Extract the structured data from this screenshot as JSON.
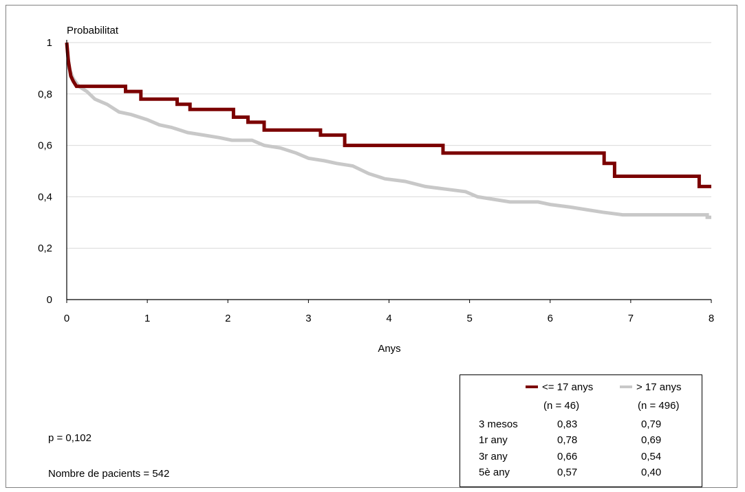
{
  "chart_data": {
    "type": "line",
    "subtype": "kaplan-meier step",
    "ylabel": "Probabilitat",
    "xlabel": "Anys",
    "xlim": [
      0,
      8
    ],
    "ylim": [
      0,
      1
    ],
    "x_ticks": [
      "0",
      "1",
      "2",
      "3",
      "4",
      "5",
      "6",
      "7",
      "8"
    ],
    "y_ticks": [
      "0",
      "0,2",
      "0,4",
      "0,6",
      "0,8",
      "1"
    ],
    "grid": "horizontal",
    "series": [
      {
        "name": "<= 17 anys",
        "n_label": "(n = 46)",
        "color": "#7b0000",
        "points": [
          [
            0,
            1
          ],
          [
            0.02,
            0.93
          ],
          [
            0.05,
            0.87
          ],
          [
            0.08,
            0.85
          ],
          [
            0.12,
            0.83
          ],
          [
            0.73,
            0.83
          ],
          [
            0.73,
            0.81
          ],
          [
            0.92,
            0.81
          ],
          [
            0.92,
            0.78
          ],
          [
            1.37,
            0.78
          ],
          [
            1.37,
            0.76
          ],
          [
            1.53,
            0.76
          ],
          [
            1.53,
            0.74
          ],
          [
            2.07,
            0.74
          ],
          [
            2.07,
            0.71
          ],
          [
            2.25,
            0.71
          ],
          [
            2.25,
            0.69
          ],
          [
            2.45,
            0.69
          ],
          [
            2.45,
            0.66
          ],
          [
            3.15,
            0.66
          ],
          [
            3.15,
            0.64
          ],
          [
            3.45,
            0.64
          ],
          [
            3.45,
            0.6
          ],
          [
            4.67,
            0.6
          ],
          [
            4.67,
            0.57
          ],
          [
            6.67,
            0.57
          ],
          [
            6.67,
            0.53
          ],
          [
            6.8,
            0.53
          ],
          [
            6.8,
            0.48
          ],
          [
            7.85,
            0.48
          ],
          [
            7.85,
            0.44
          ],
          [
            8,
            0.44
          ]
        ]
      },
      {
        "name": "> 17 anys",
        "n_label": "(n = 496)",
        "color": "#c8c8c8",
        "points": [
          [
            0,
            1
          ],
          [
            0.03,
            0.9
          ],
          [
            0.08,
            0.86
          ],
          [
            0.15,
            0.83
          ],
          [
            0.25,
            0.81
          ],
          [
            0.35,
            0.78
          ],
          [
            0.5,
            0.76
          ],
          [
            0.65,
            0.73
          ],
          [
            0.8,
            0.72
          ],
          [
            1.0,
            0.7
          ],
          [
            1.15,
            0.68
          ],
          [
            1.3,
            0.67
          ],
          [
            1.5,
            0.65
          ],
          [
            1.7,
            0.64
          ],
          [
            1.9,
            0.63
          ],
          [
            2.05,
            0.62
          ],
          [
            2.3,
            0.62
          ],
          [
            2.45,
            0.6
          ],
          [
            2.65,
            0.59
          ],
          [
            2.85,
            0.57
          ],
          [
            3.0,
            0.55
          ],
          [
            3.2,
            0.54
          ],
          [
            3.35,
            0.53
          ],
          [
            3.55,
            0.52
          ],
          [
            3.75,
            0.49
          ],
          [
            3.95,
            0.47
          ],
          [
            4.2,
            0.46
          ],
          [
            4.45,
            0.44
          ],
          [
            4.7,
            0.43
          ],
          [
            4.95,
            0.42
          ],
          [
            5.1,
            0.4
          ],
          [
            5.3,
            0.39
          ],
          [
            5.5,
            0.38
          ],
          [
            5.85,
            0.38
          ],
          [
            6.0,
            0.37
          ],
          [
            6.25,
            0.36
          ],
          [
            6.45,
            0.35
          ],
          [
            6.65,
            0.34
          ],
          [
            6.9,
            0.33
          ],
          [
            7.4,
            0.33
          ],
          [
            7.95,
            0.33
          ],
          [
            7.95,
            0.32
          ],
          [
            8,
            0.32
          ]
        ]
      }
    ]
  },
  "legend_table": {
    "rows": [
      {
        "label": "3 mesos",
        "a": "0,83",
        "b": "0,79"
      },
      {
        "label": "1r any",
        "a": "0,78",
        "b": "0,69"
      },
      {
        "label": "3r any",
        "a": "0,66",
        "b": "0,54"
      },
      {
        "label": "5è any",
        "a": "0,57",
        "b": "0,40"
      }
    ]
  },
  "notes": {
    "p_value": "p = 0,102",
    "patients": "Nombre de pacients = 542"
  }
}
